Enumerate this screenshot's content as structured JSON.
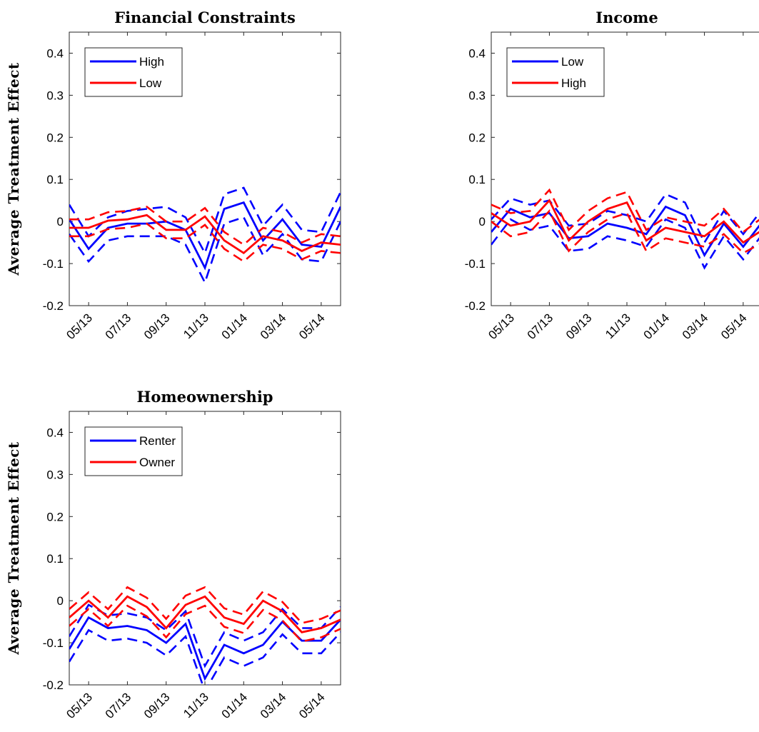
{
  "chart_data": [
    {
      "type": "line",
      "title": "Financial Constraints",
      "ylabel": "Average Treatment Effect",
      "xlabel": "",
      "ylim": [
        -0.2,
        0.45
      ],
      "yticks": [
        -0.2,
        -0.1,
        0,
        0.1,
        0.2,
        0.3,
        0.4
      ],
      "ytick_labels": [
        "-0.2",
        "-0.1",
        "0",
        "0.1",
        "0.2",
        "0.3",
        "0.4"
      ],
      "xlim": [
        0,
        14
      ],
      "xtick_positions": [
        1,
        3,
        5,
        7,
        9,
        11,
        13
      ],
      "xtick_labels": [
        "05/13",
        "07/13",
        "09/13",
        "11/13",
        "01/14",
        "03/14",
        "05/14"
      ],
      "legend_position": "top-left",
      "x": [
        0,
        1,
        2,
        3,
        4,
        5,
        6,
        7,
        8,
        9,
        10,
        11,
        12,
        13,
        14
      ],
      "series": [
        {
          "name": "High",
          "color": "#0000ff",
          "values": [
            0.005,
            -0.065,
            -0.015,
            -0.005,
            -0.005,
            0.0,
            -0.02,
            -0.11,
            0.03,
            0.045,
            -0.045,
            0.005,
            -0.055,
            -0.06,
            0.035
          ],
          "upper": [
            0.04,
            -0.035,
            0.01,
            0.025,
            0.03,
            0.035,
            0.01,
            -0.075,
            0.065,
            0.08,
            -0.01,
            0.04,
            -0.02,
            -0.025,
            0.07
          ],
          "lower": [
            -0.03,
            -0.095,
            -0.045,
            -0.035,
            -0.035,
            -0.035,
            -0.055,
            -0.145,
            -0.005,
            0.01,
            -0.08,
            -0.03,
            -0.09,
            -0.095,
            0.0
          ]
        },
        {
          "name": "Low",
          "color": "#ff0000",
          "values": [
            -0.015,
            -0.015,
            0.002,
            0.005,
            0.015,
            -0.02,
            -0.02,
            0.012,
            -0.045,
            -0.075,
            -0.035,
            -0.045,
            -0.07,
            -0.05,
            -0.055
          ],
          "upper": [
            0.005,
            0.005,
            0.022,
            0.025,
            0.035,
            0.0,
            0.0,
            0.032,
            -0.025,
            -0.055,
            -0.015,
            -0.025,
            -0.05,
            -0.03,
            -0.035
          ],
          "lower": [
            -0.035,
            -0.035,
            -0.018,
            -0.015,
            -0.005,
            -0.04,
            -0.04,
            -0.008,
            -0.065,
            -0.095,
            -0.055,
            -0.065,
            -0.09,
            -0.07,
            -0.075
          ]
        }
      ]
    },
    {
      "type": "line",
      "title": "Income",
      "ylabel": "",
      "xlabel": "",
      "ylim": [
        -0.2,
        0.45
      ],
      "yticks": [
        -0.2,
        -0.1,
        0,
        0.1,
        0.2,
        0.3,
        0.4
      ],
      "ytick_labels": [
        "-0.2",
        "-0.1",
        "0",
        "0.1",
        "0.2",
        "0.3",
        "0.4"
      ],
      "xlim": [
        0,
        14
      ],
      "xtick_positions": [
        1,
        3,
        5,
        7,
        9,
        11,
        13
      ],
      "xtick_labels": [
        "05/13",
        "07/13",
        "09/13",
        "11/13",
        "01/14",
        "03/14",
        "05/14"
      ],
      "legend_position": "top-left",
      "x": [
        0,
        1,
        2,
        3,
        4,
        5,
        6,
        7,
        8,
        9,
        10,
        11,
        12,
        13,
        14
      ],
      "series": [
        {
          "name": "Low",
          "color": "#0000ff",
          "values": [
            -0.025,
            0.03,
            0.01,
            0.02,
            -0.04,
            -0.035,
            -0.005,
            -0.015,
            -0.03,
            0.035,
            0.015,
            -0.08,
            -0.005,
            -0.06,
            0.0
          ],
          "upper": [
            0.005,
            0.055,
            0.04,
            0.05,
            -0.01,
            -0.005,
            0.025,
            0.015,
            0.0,
            0.065,
            0.045,
            -0.05,
            0.025,
            -0.03,
            0.03
          ],
          "lower": [
            -0.055,
            0.005,
            -0.02,
            -0.01,
            -0.07,
            -0.065,
            -0.035,
            -0.045,
            -0.06,
            0.005,
            -0.015,
            -0.11,
            -0.035,
            -0.09,
            -0.03
          ]
        },
        {
          "name": "High",
          "color": "#ff0000",
          "values": [
            0.02,
            -0.01,
            0.0,
            0.05,
            -0.045,
            0.0,
            0.03,
            0.045,
            -0.045,
            -0.015,
            -0.025,
            -0.035,
            0.0,
            -0.05,
            -0.02
          ],
          "upper": [
            0.04,
            0.02,
            0.025,
            0.075,
            -0.02,
            0.025,
            0.055,
            0.07,
            -0.02,
            0.01,
            0.0,
            -0.01,
            0.03,
            -0.025,
            0.01
          ],
          "lower": [
            0.0,
            -0.035,
            -0.025,
            0.025,
            -0.07,
            -0.025,
            0.005,
            0.02,
            -0.07,
            -0.04,
            -0.05,
            -0.06,
            -0.03,
            -0.075,
            -0.05
          ]
        }
      ]
    },
    {
      "type": "line",
      "title": "Homeownership",
      "ylabel": "Average Treatment Effect",
      "xlabel": "",
      "ylim": [
        -0.2,
        0.45
      ],
      "yticks": [
        -0.2,
        -0.1,
        0,
        0.1,
        0.2,
        0.3,
        0.4
      ],
      "ytick_labels": [
        "-0.2",
        "-0.1",
        "0",
        "0.1",
        "0.2",
        "0.3",
        "0.4"
      ],
      "xlim": [
        0,
        14
      ],
      "xtick_positions": [
        1,
        3,
        5,
        7,
        9,
        11,
        13
      ],
      "xtick_labels": [
        "05/13",
        "07/13",
        "09/13",
        "11/13",
        "01/14",
        "03/14",
        "05/14"
      ],
      "legend_position": "top-left",
      "x": [
        0,
        1,
        2,
        3,
        4,
        5,
        6,
        7,
        8,
        9,
        10,
        11,
        12,
        13,
        14
      ],
      "series": [
        {
          "name": "Renter",
          "color": "#0000ff",
          "values": [
            -0.115,
            -0.04,
            -0.065,
            -0.06,
            -0.07,
            -0.1,
            -0.055,
            -0.185,
            -0.105,
            -0.125,
            -0.105,
            -0.05,
            -0.095,
            -0.095,
            -0.045
          ],
          "upper": [
            -0.085,
            -0.01,
            -0.035,
            -0.03,
            -0.04,
            -0.07,
            -0.025,
            -0.155,
            -0.075,
            -0.095,
            -0.075,
            -0.02,
            -0.065,
            -0.065,
            -0.015
          ],
          "lower": [
            -0.145,
            -0.07,
            -0.095,
            -0.09,
            -0.1,
            -0.13,
            -0.085,
            -0.215,
            -0.135,
            -0.155,
            -0.135,
            -0.08,
            -0.125,
            -0.125,
            -0.075
          ]
        },
        {
          "name": "Owner",
          "color": "#ff0000",
          "values": [
            -0.04,
            0.0,
            -0.04,
            0.01,
            -0.015,
            -0.065,
            -0.01,
            0.01,
            -0.04,
            -0.055,
            0.0,
            -0.025,
            -0.075,
            -0.065,
            -0.045
          ],
          "upper": [
            -0.02,
            0.02,
            -0.02,
            0.032,
            0.007,
            -0.043,
            0.012,
            0.032,
            -0.018,
            -0.033,
            0.022,
            -0.003,
            -0.053,
            -0.043,
            -0.023
          ],
          "lower": [
            -0.06,
            -0.02,
            -0.06,
            -0.012,
            -0.037,
            -0.087,
            -0.032,
            -0.012,
            -0.062,
            -0.077,
            -0.022,
            -0.047,
            -0.097,
            -0.087,
            -0.067
          ]
        }
      ]
    }
  ]
}
